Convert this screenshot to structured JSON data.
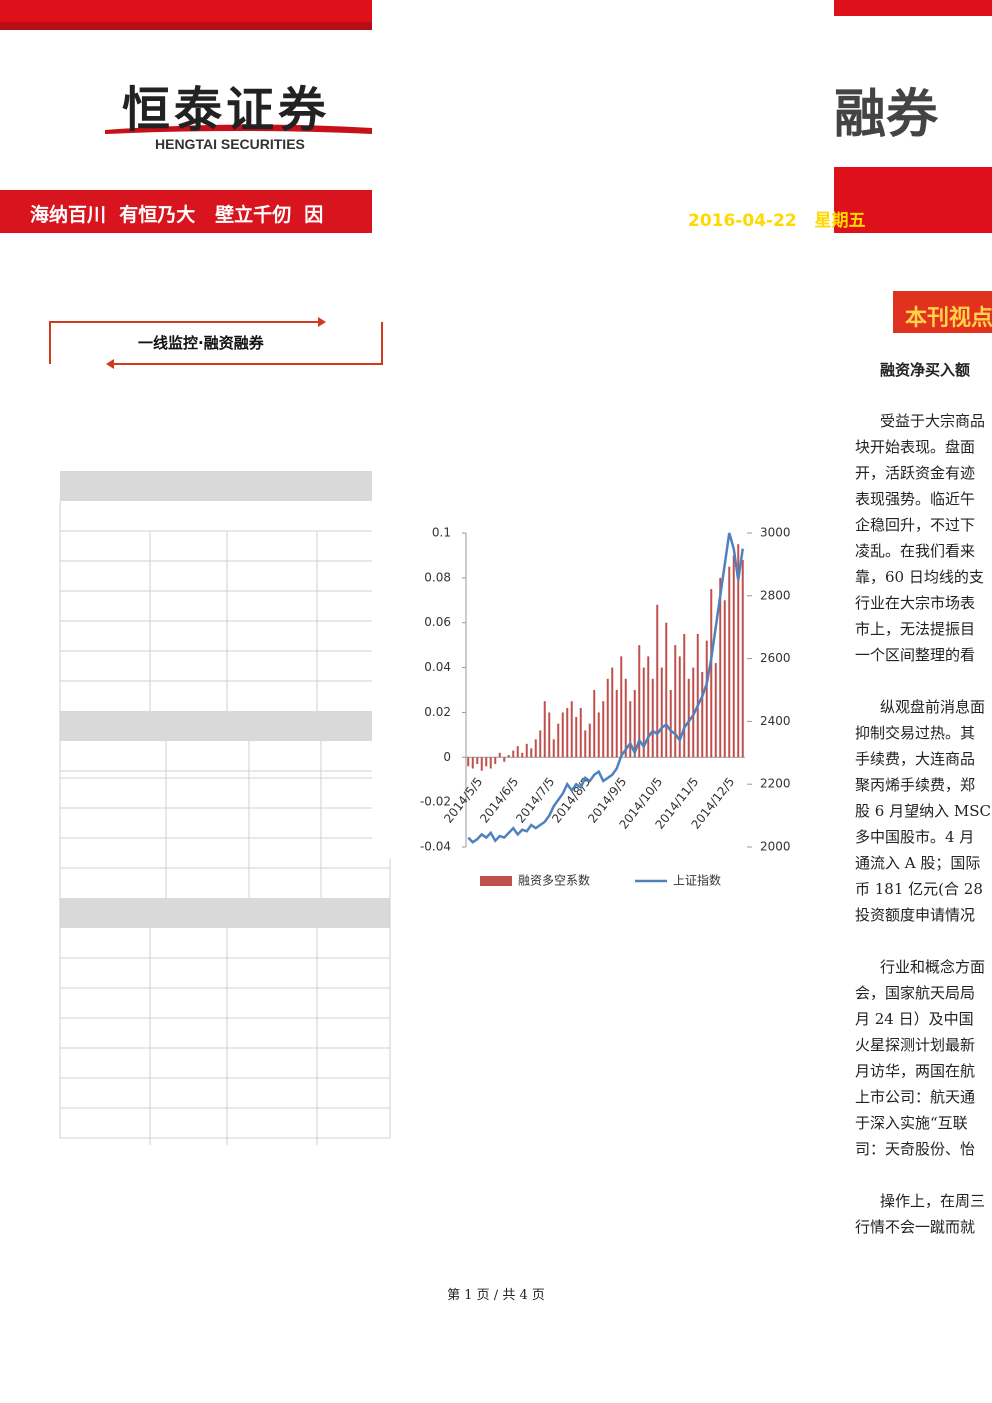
{
  "header": {
    "logo": "恒泰证券",
    "logo_en": "HENGTAI SECURITIES",
    "slogan": "海纳百川  有恒乃大   壁立千仞  因",
    "title_fragment": "融券",
    "date": "2016-04-22",
    "weekday": "星期五"
  },
  "section": {
    "title": "一线监控·融资融券"
  },
  "viewpoint": {
    "title": "本刊视点",
    "headline": "融资净买入额",
    "paragraphs": [
      [
        "受益于大宗商品",
        "块开始表现。盘面",
        "开，活跃资金有迹",
        "表现强势。临近午",
        "企稳回升，不过下",
        "凌乱。在我们看来",
        "靠，60 日均线的支",
        "行业在大宗市场表",
        "市上，无法提振目",
        "一个区间整理的看"
      ],
      [
        "纵观盘前消息面",
        "抑制交易过热。其",
        "手续费，大连商品",
        "聚丙烯手续费，郑",
        "股 6 月望纳入 MSC",
        "多中国股市。4 月",
        "通流入 A 股；国际",
        "币 181 亿元(合 28",
        "投资额度申请情况"
      ],
      [
        "行业和概念方面",
        "会，国家航天局局",
        "月 24 日）及中国",
        "火星探测计划最新",
        "月访华，两国在航",
        "上市公司：航天通",
        "于深入实施“互联",
        "司：天奇股份、怡"
      ],
      [
        "操作上，在周三",
        "行情不会一蹴而就"
      ]
    ]
  },
  "chart_data": {
    "type": "bar-line",
    "categories": [
      "2014/5/5",
      null,
      null,
      null,
      null,
      null,
      null,
      null,
      "2014/6/5",
      null,
      null,
      null,
      null,
      null,
      null,
      null,
      "2014/7/5",
      null,
      null,
      null,
      null,
      null,
      null,
      null,
      "2014/8/5",
      null,
      null,
      null,
      null,
      null,
      null,
      null,
      "2014/9/5",
      null,
      null,
      null,
      null,
      null,
      null,
      null,
      "2014/10/5",
      null,
      null,
      null,
      null,
      null,
      null,
      null,
      "2014/11/5",
      null,
      null,
      null,
      null,
      null,
      null,
      null,
      "2014/12/5",
      null,
      null,
      null,
      null,
      null
    ],
    "series": [
      {
        "name": "融资多空系数",
        "color": "#c0504d",
        "values": [
          -0.004,
          -0.005,
          -0.003,
          -0.006,
          -0.004,
          -0.005,
          -0.003,
          0.002,
          -0.002,
          0.001,
          0.003,
          0.005,
          0.002,
          0.006,
          0.004,
          0.008,
          0.012,
          0.025,
          0.02,
          0.008,
          0.015,
          0.02,
          0.022,
          0.025,
          0.018,
          0.022,
          0.012,
          0.015,
          0.03,
          0.02,
          0.025,
          0.035,
          0.04,
          0.03,
          0.045,
          0.035,
          0.025,
          0.03,
          0.05,
          0.04,
          0.045,
          0.035,
          0.068,
          0.04,
          0.06,
          0.03,
          0.05,
          0.045,
          0.055,
          0.035,
          0.04,
          0.055,
          0.038,
          0.052,
          0.075,
          0.042,
          0.08,
          0.07,
          0.085,
          0.09,
          0.095,
          0.088
        ]
      },
      {
        "name": "上证指数",
        "color": "#4f81bd",
        "axis": "y2",
        "values": [
          2030,
          2015,
          2025,
          2040,
          2030,
          2045,
          2020,
          2035,
          2030,
          2045,
          2060,
          2040,
          2055,
          2050,
          2070,
          2060,
          2070,
          2080,
          2100,
          2130,
          2150,
          2170,
          2200,
          2180,
          2200,
          2190,
          2220,
          2210,
          2230,
          2240,
          2210,
          2220,
          2230,
          2250,
          2290,
          2310,
          2330,
          2300,
          2340,
          2320,
          2350,
          2370,
          2360,
          2380,
          2390,
          2370,
          2360,
          2340,
          2380,
          2400,
          2420,
          2450,
          2480,
          2520,
          2600,
          2700,
          2800,
          2900,
          3000,
          2950,
          2850,
          2950
        ]
      }
    ],
    "ylim": [
      -0.04,
      0.1
    ],
    "yticks": [
      -0.04,
      -0.02,
      0,
      0.02,
      0.04,
      0.06,
      0.08,
      0.1
    ],
    "y2lim": [
      2000,
      3000
    ],
    "y2ticks": [
      2000,
      2200,
      2400,
      2600,
      2800,
      3000
    ],
    "legend": "bottom"
  },
  "footer": "第 1 页 / 共 4 页"
}
